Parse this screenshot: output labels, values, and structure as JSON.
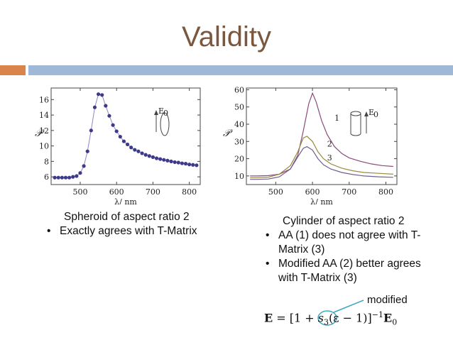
{
  "slide": {
    "title": "Validity",
    "colors": {
      "title": "#7a5840",
      "band_left": "#d8844a",
      "band_right": "#9fb8d8"
    }
  },
  "left_caption": {
    "heading": "Spheroid of aspect ratio 2",
    "bullets": [
      "Exactly agrees with T-Matrix"
    ]
  },
  "right_caption": {
    "heading": "Cylinder of aspect ratio 2",
    "bullets": [
      "AA (1) does not agree with T-Matrix (3)",
      "Modified AA (2) better agrees with T-Matrix (3)"
    ]
  },
  "annotation": {
    "label": "modified",
    "equation_parts": {
      "lhs": "E",
      "eq": " = [1 + ",
      "s": "s",
      "sub": "3",
      "mid": "(ε − 1)]",
      "sup": "−1",
      "rhs": "E",
      "rhs_sub": "0"
    }
  },
  "chart_data": [
    {
      "type": "scatter",
      "title": "",
      "xlabel": "λ/ nm",
      "ylabel": "𝒫",
      "xlim": [
        420,
        830
      ],
      "ylim": [
        5,
        17.5
      ],
      "xticks": [
        500,
        600,
        700,
        800
      ],
      "yticks": [
        6,
        8,
        10,
        12,
        14,
        16
      ],
      "inset_label": "E",
      "inset_label_sub": "0",
      "series": [
        {
          "x": [
            430,
            440,
            450,
            460,
            470,
            480,
            490,
            500,
            510,
            520,
            530,
            540,
            550,
            560,
            570,
            580,
            590,
            600,
            610,
            620,
            630,
            640,
            650,
            660,
            670,
            680,
            690,
            700,
            710,
            720,
            730,
            740,
            750,
            760,
            770,
            780,
            790,
            800,
            810,
            820
          ],
          "y": [
            5.9,
            5.9,
            5.9,
            5.9,
            5.9,
            6.0,
            6.1,
            6.5,
            7.4,
            9.3,
            12.0,
            15.0,
            16.7,
            16.6,
            15.2,
            13.9,
            12.7,
            11.9,
            11.2,
            10.6,
            10.2,
            9.8,
            9.5,
            9.3,
            9.05,
            8.85,
            8.7,
            8.55,
            8.4,
            8.3,
            8.2,
            8.1,
            8.0,
            7.9,
            7.85,
            7.75,
            7.7,
            7.6,
            7.55,
            7.5
          ]
        }
      ]
    },
    {
      "type": "line",
      "title": "",
      "xlabel": "λ/ nm",
      "ylabel": "𝒫",
      "xlim": [
        420,
        830
      ],
      "ylim": [
        5,
        61
      ],
      "xticks": [
        500,
        600,
        700,
        800
      ],
      "yticks": [
        10,
        20,
        30,
        40,
        50,
        60
      ],
      "inset_label": "E",
      "inset_label_sub": "0",
      "series": [
        {
          "name": "1",
          "x": [
            430,
            450,
            480,
            510,
            540,
            560,
            575,
            590,
            600,
            610,
            625,
            640,
            660,
            680,
            700,
            730,
            760,
            790,
            820
          ],
          "y": [
            10,
            10,
            10.2,
            11,
            14,
            22,
            36,
            52,
            58,
            53,
            42,
            34,
            27,
            23,
            20.5,
            18.5,
            17,
            16,
            15.5
          ]
        },
        {
          "name": "2",
          "x": [
            430,
            450,
            480,
            510,
            540,
            560,
            575,
            585,
            600,
            615,
            630,
            650,
            680,
            710,
            740,
            780,
            820
          ],
          "y": [
            9,
            9,
            9.3,
            11,
            16,
            24,
            32,
            33,
            30,
            24,
            20,
            17,
            14.5,
            13,
            12,
            11.5,
            11
          ]
        },
        {
          "name": "3",
          "x": [
            430,
            450,
            480,
            510,
            540,
            560,
            575,
            585,
            600,
            615,
            630,
            650,
            680,
            710,
            740,
            780,
            820
          ],
          "y": [
            8,
            8,
            8.2,
            9.5,
            14,
            21,
            26,
            27,
            25,
            20,
            16.5,
            14,
            12,
            10.8,
            10,
            9.5,
            9.2
          ]
        }
      ]
    }
  ]
}
